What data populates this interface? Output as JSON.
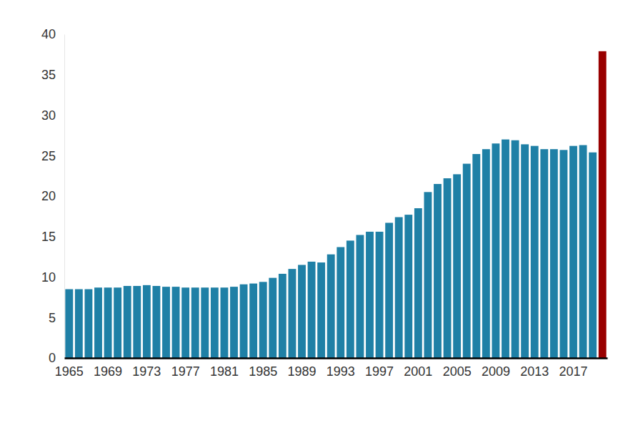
{
  "chart_data": {
    "type": "bar",
    "categories": [
      "1965",
      null,
      null,
      null,
      "1969",
      null,
      null,
      null,
      "1973",
      null,
      null,
      null,
      "1977",
      null,
      null,
      null,
      "1981",
      null,
      null,
      null,
      "1985",
      null,
      null,
      null,
      "1989",
      null,
      null,
      null,
      "1993",
      null,
      null,
      null,
      "1997",
      null,
      null,
      null,
      "2001",
      null,
      null,
      null,
      "2005",
      null,
      null,
      null,
      "2009",
      null,
      null,
      null,
      "2013",
      null,
      null,
      null,
      "2017",
      null,
      null,
      null
    ],
    "values": [
      8.5,
      8.5,
      8.5,
      8.7,
      8.7,
      8.7,
      8.9,
      8.9,
      9.0,
      8.9,
      8.8,
      8.8,
      8.7,
      8.7,
      8.7,
      8.7,
      8.7,
      8.8,
      9.1,
      9.2,
      9.4,
      9.9,
      10.4,
      11.0,
      11.5,
      11.9,
      11.8,
      12.8,
      13.7,
      14.5,
      15.2,
      15.6,
      15.6,
      16.7,
      17.4,
      17.7,
      18.5,
      20.5,
      21.5,
      22.2,
      22.7,
      24.0,
      25.2,
      25.8,
      26.5,
      27.0,
      26.9,
      26.4,
      26.2,
      25.8,
      25.8,
      25.7,
      26.2,
      26.3,
      25.4,
      37.9
    ],
    "colors": [
      "#1f80a6",
      "#1f80a6",
      "#1f80a6",
      "#1f80a6",
      "#1f80a6",
      "#1f80a6",
      "#1f80a6",
      "#1f80a6",
      "#1f80a6",
      "#1f80a6",
      "#1f80a6",
      "#1f80a6",
      "#1f80a6",
      "#1f80a6",
      "#1f80a6",
      "#1f80a6",
      "#1f80a6",
      "#1f80a6",
      "#1f80a6",
      "#1f80a6",
      "#1f80a6",
      "#1f80a6",
      "#1f80a6",
      "#1f80a6",
      "#1f80a6",
      "#1f80a6",
      "#1f80a6",
      "#1f80a6",
      "#1f80a6",
      "#1f80a6",
      "#1f80a6",
      "#1f80a6",
      "#1f80a6",
      "#1f80a6",
      "#1f80a6",
      "#1f80a6",
      "#1f80a6",
      "#1f80a6",
      "#1f80a6",
      "#1f80a6",
      "#1f80a6",
      "#1f80a6",
      "#1f80a6",
      "#1f80a6",
      "#1f80a6",
      "#1f80a6",
      "#1f80a6",
      "#1f80a6",
      "#1f80a6",
      "#1f80a6",
      "#1f80a6",
      "#1f80a6",
      "#1f80a6",
      "#1f80a6",
      "#1f80a6",
      "#990000"
    ],
    "ylim": [
      0,
      40
    ],
    "yticks": [
      0,
      5,
      10,
      15,
      20,
      25,
      30,
      35,
      40
    ],
    "grid": false
  }
}
